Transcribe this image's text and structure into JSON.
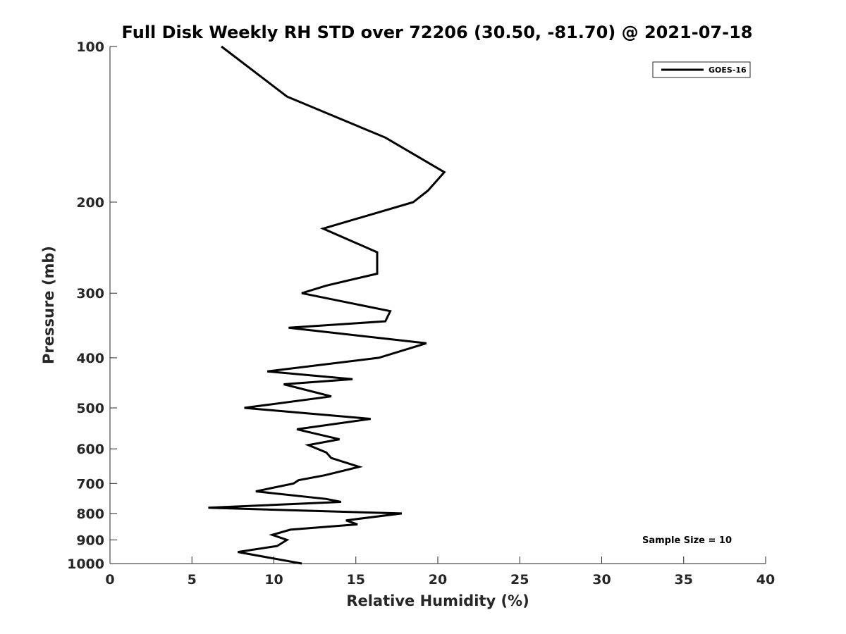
{
  "chart_data": {
    "type": "line",
    "title": "Full Disk Weekly RH STD over 72206 (30.50, -81.70) @ 2021-07-18",
    "xlabel": "Relative Humidity (%)",
    "ylabel": "Pressure (mb)",
    "xlim": [
      0,
      40
    ],
    "ylim": [
      100,
      1000
    ],
    "y_scale": "log",
    "y_reversed": true,
    "x_ticks": [
      0,
      5,
      10,
      15,
      20,
      25,
      30,
      35,
      40
    ],
    "y_ticks": [
      100,
      200,
      300,
      400,
      500,
      600,
      700,
      800,
      900,
      1000
    ],
    "grid": false,
    "legend_position": "top-right",
    "annotation": "Sample Size = 10",
    "series": [
      {
        "name": "GOES-16",
        "color": "#000000",
        "points": [
          [
            6.8,
            100
          ],
          [
            10.8,
            125
          ],
          [
            16.8,
            150
          ],
          [
            20.4,
            175
          ],
          [
            19.4,
            190
          ],
          [
            18.5,
            200
          ],
          [
            13.0,
            225
          ],
          [
            16.3,
            250
          ],
          [
            16.3,
            275
          ],
          [
            13.2,
            290
          ],
          [
            11.7,
            300
          ],
          [
            17.1,
            325
          ],
          [
            16.8,
            340
          ],
          [
            10.9,
            350
          ],
          [
            19.3,
            375
          ],
          [
            16.4,
            400
          ],
          [
            9.6,
            425
          ],
          [
            14.8,
            440
          ],
          [
            10.6,
            450
          ],
          [
            13.5,
            475
          ],
          [
            8.2,
            500
          ],
          [
            15.9,
            525
          ],
          [
            11.4,
            550
          ],
          [
            14.0,
            575
          ],
          [
            12.1,
            590
          ],
          [
            13.2,
            610
          ],
          [
            13.5,
            625
          ],
          [
            15.2,
            650
          ],
          [
            13.1,
            675
          ],
          [
            11.5,
            690
          ],
          [
            11.2,
            700
          ],
          [
            8.9,
            725
          ],
          [
            13.2,
            750
          ],
          [
            14.1,
            760
          ],
          [
            6.0,
            780
          ],
          [
            17.8,
            800
          ],
          [
            14.4,
            825
          ],
          [
            15.1,
            840
          ],
          [
            11.0,
            860
          ],
          [
            9.9,
            880
          ],
          [
            10.8,
            900
          ],
          [
            10.2,
            925
          ],
          [
            7.8,
            950
          ],
          [
            11.7,
            1000
          ]
        ]
      }
    ]
  }
}
